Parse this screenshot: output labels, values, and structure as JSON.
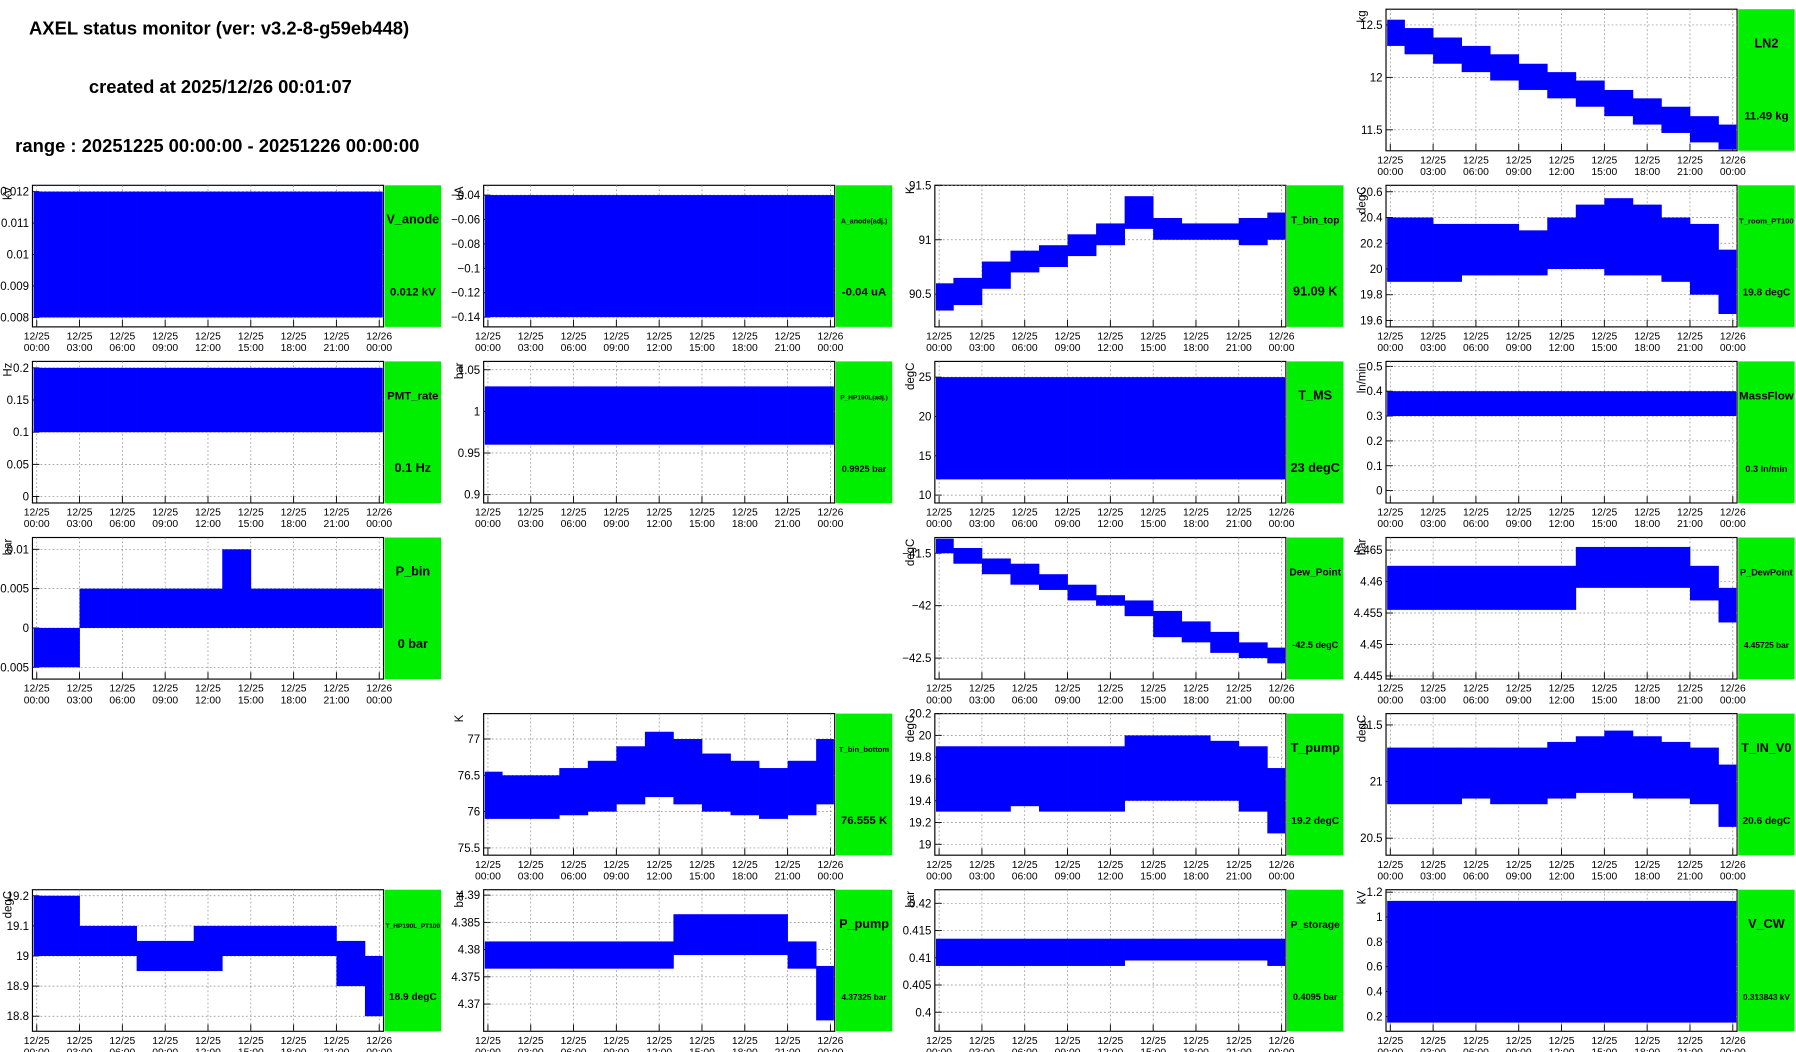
{
  "header": {
    "title": "AXEL status monitor (ver: v3.2-8-g59eb448)",
    "created": "created at 2025/12/26 00:01:07",
    "range": "range : 20251225 00:00:00 - 20251226 00:00:00"
  },
  "time_axis": {
    "xlim": [
      -0.3,
      24.3
    ],
    "x": [
      0,
      2,
      4,
      6,
      8,
      10,
      12,
      14,
      16,
      18,
      20,
      22,
      24
    ],
    "xticks": [
      {
        "value": 0,
        "date": "12/25",
        "time": "00:00"
      },
      {
        "value": 3,
        "date": "12/25",
        "time": "03:00"
      },
      {
        "value": 6,
        "date": "12/25",
        "time": "06:00"
      },
      {
        "value": 9,
        "date": "12/25",
        "time": "09:00"
      },
      {
        "value": 12,
        "date": "12/25",
        "time": "12:00"
      },
      {
        "value": 15,
        "date": "12/25",
        "time": "15:00"
      },
      {
        "value": 18,
        "date": "12/25",
        "time": "18:00"
      },
      {
        "value": 21,
        "date": "12/25",
        "time": "21:00"
      },
      {
        "value": 24,
        "date": "12/26",
        "time": "00:00"
      }
    ]
  },
  "panels": [
    [
      null,
      null,
      null,
      {
        "type": "band",
        "name": "LN2",
        "unit": "kg",
        "readout": "11.49 kg",
        "color": "#0000ff",
        "ylim": [
          11.3,
          12.65
        ],
        "yticks": [
          11.5,
          12,
          12.5
        ],
        "grid": true,
        "low": [
          12.3,
          12.22,
          12.13,
          12.05,
          11.97,
          11.88,
          11.8,
          11.72,
          11.63,
          11.55,
          11.47,
          11.38,
          11.3
        ],
        "high": [
          12.55,
          12.47,
          12.38,
          12.3,
          12.22,
          12.13,
          12.05,
          11.97,
          11.88,
          11.8,
          11.72,
          11.63,
          11.55
        ]
      }
    ],
    [
      {
        "type": "band",
        "name": "V_anode",
        "unit": "kV",
        "readout": "0.012 kV",
        "color": "#0000ff",
        "ylim": [
          0.0077,
          0.0122
        ],
        "yticks": [
          0.008,
          0.009,
          0.01,
          0.011,
          0.012
        ],
        "grid": true,
        "low": [
          0.008,
          0.008,
          0.008,
          0.008,
          0.008,
          0.008,
          0.008,
          0.008,
          0.008,
          0.008,
          0.008,
          0.008,
          0.008
        ],
        "high": [
          0.012,
          0.012,
          0.012,
          0.012,
          0.012,
          0.012,
          0.012,
          0.012,
          0.012,
          0.012,
          0.012,
          0.012,
          0.012
        ]
      },
      {
        "type": "band",
        "name": "A_anode(adj.)",
        "unit": "uA",
        "readout": "-0.04 uA",
        "color": "#0000ff",
        "ylim": [
          -0.148,
          -0.032
        ],
        "yticks": [
          {
            "value": -0.14,
            "label": "−0.14"
          },
          {
            "value": -0.12,
            "label": "−0.12"
          },
          {
            "value": -0.1,
            "label": "−0.1"
          },
          {
            "value": -0.08,
            "label": "−0.08"
          },
          {
            "value": -0.06,
            "label": "−0.06"
          },
          {
            "value": -0.04,
            "label": "−0.04"
          }
        ],
        "grid": true,
        "low": [
          -0.14,
          -0.14,
          -0.14,
          -0.14,
          -0.14,
          -0.14,
          -0.14,
          -0.14,
          -0.14,
          -0.14,
          -0.14,
          -0.14,
          -0.14
        ],
        "high": [
          -0.04,
          -0.04,
          -0.04,
          -0.04,
          -0.04,
          -0.04,
          -0.04,
          -0.04,
          -0.04,
          -0.04,
          -0.04,
          -0.04,
          -0.04
        ]
      },
      {
        "type": "band",
        "name": "T_bin_top",
        "unit": "K",
        "readout": "91.09 K",
        "color": "#0000ff",
        "ylim": [
          90.2,
          91.5
        ],
        "yticks": [
          90.5,
          91,
          91.5
        ],
        "grid": true,
        "low": [
          90.35,
          90.4,
          90.55,
          90.7,
          90.75,
          90.85,
          90.95,
          91.1,
          91.0,
          91.0,
          91.0,
          90.95,
          91.0
        ],
        "high": [
          90.6,
          90.65,
          90.8,
          90.9,
          90.95,
          91.05,
          91.15,
          91.4,
          91.2,
          91.15,
          91.15,
          91.2,
          91.25
        ]
      },
      {
        "type": "band",
        "name": "T_room_PT100",
        "unit": "degC",
        "readout": "19.8 degC",
        "color": "#0000ff",
        "ylim": [
          19.55,
          20.65
        ],
        "yticks": [
          19.6,
          19.8,
          20,
          20.2,
          20.4,
          20.6
        ],
        "grid": true,
        "low": [
          19.9,
          19.9,
          19.9,
          19.95,
          19.95,
          19.95,
          20.0,
          20.0,
          19.95,
          19.95,
          19.9,
          19.8,
          19.65
        ],
        "high": [
          20.4,
          20.4,
          20.35,
          20.35,
          20.35,
          20.3,
          20.4,
          20.5,
          20.55,
          20.5,
          20.4,
          20.35,
          20.15
        ]
      }
    ],
    [
      {
        "type": "band",
        "name": "PMT_rate",
        "unit": "Hz",
        "readout": "0.1 Hz",
        "color": "#0000ff",
        "ylim": [
          -0.01,
          0.21
        ],
        "yticks": [
          0,
          0.05,
          0.1,
          0.15,
          0.2
        ],
        "grid": true,
        "low": [
          0.1,
          0.1,
          0.1,
          0.1,
          0.1,
          0.1,
          0.1,
          0.1,
          0.1,
          0.1,
          0.1,
          0.1,
          0.1
        ],
        "high": [
          0.2,
          0.2,
          0.2,
          0.2,
          0.2,
          0.2,
          0.2,
          0.2,
          0.2,
          0.2,
          0.2,
          0.2,
          0.2
        ]
      },
      {
        "type": "band",
        "name": "P_HP190L(adj.)",
        "unit": "bar",
        "readout": "0.9925 bar",
        "color": "#0000ff",
        "ylim": [
          0.89,
          1.06
        ],
        "yticks": [
          0.9,
          0.95,
          1,
          1.05
        ],
        "grid": true,
        "low": [
          0.96,
          0.96,
          0.96,
          0.96,
          0.96,
          0.96,
          0.96,
          0.96,
          0.96,
          0.96,
          0.96,
          0.96,
          0.96
        ],
        "high": [
          1.03,
          1.03,
          1.03,
          1.03,
          1.03,
          1.03,
          1.03,
          1.03,
          1.03,
          1.03,
          1.03,
          1.03,
          1.03
        ]
      },
      {
        "type": "band",
        "name": "T_MS",
        "unit": "degC",
        "readout": "23 degC",
        "color": "#0000ff",
        "ylim": [
          9,
          27
        ],
        "yticks": [
          10,
          15,
          20,
          25
        ],
        "grid": true,
        "low": [
          12,
          12,
          12,
          12,
          12,
          12,
          12,
          12,
          12,
          12,
          12,
          12,
          12
        ],
        "high": [
          25,
          25,
          25,
          25,
          25,
          25,
          25,
          25,
          25,
          25,
          25,
          25,
          25
        ]
      },
      {
        "type": "band",
        "name": "MassFlow",
        "unit": "ln/min",
        "readout": "0.3 ln/min",
        "color": "#0000ff",
        "ylim": [
          -0.05,
          0.52
        ],
        "yticks": [
          0,
          0.1,
          0.2,
          0.3,
          0.4,
          0.5
        ],
        "grid": true,
        "low": [
          0.3,
          0.3,
          0.3,
          0.3,
          0.3,
          0.3,
          0.3,
          0.3,
          0.3,
          0.3,
          0.3,
          0.3,
          0.3
        ],
        "high": [
          0.4,
          0.4,
          0.4,
          0.4,
          0.4,
          0.4,
          0.4,
          0.4,
          0.4,
          0.4,
          0.4,
          0.4,
          0.4
        ]
      }
    ],
    [
      {
        "type": "band",
        "name": "P_bin",
        "unit": "bar",
        "readout": "0 bar",
        "color": "#0000ff",
        "ylim": [
          -0.0065,
          0.0115
        ],
        "yticks": [
          -0.005,
          0,
          0.005,
          0.01
        ],
        "grid": true,
        "low": [
          -0.005,
          -0.005,
          0,
          0,
          0,
          0,
          0,
          0,
          0,
          0,
          0,
          0,
          0
        ],
        "high": [
          0,
          0,
          0.005,
          0.005,
          0.005,
          0.005,
          0.005,
          0.01,
          0.005,
          0.005,
          0.005,
          0.005,
          0.005
        ]
      },
      null,
      {
        "type": "band",
        "name": "Dew_Point",
        "unit": "degC",
        "readout": "-42.5 degC",
        "color": "#0000ff",
        "ylim": [
          -42.7,
          -41.35
        ],
        "yticks": [
          {
            "value": -42.5,
            "label": "−42.5"
          },
          {
            "value": -42,
            "label": "−42"
          },
          {
            "value": -41.5,
            "label": "−41.5"
          }
        ],
        "grid": true,
        "low": [
          -41.5,
          -41.6,
          -41.7,
          -41.8,
          -41.85,
          -41.95,
          -42.0,
          -42.1,
          -42.3,
          -42.35,
          -42.45,
          -42.5,
          -42.55
        ],
        "high": [
          -41.35,
          -41.45,
          -41.55,
          -41.6,
          -41.7,
          -41.8,
          -41.9,
          -41.95,
          -42.05,
          -42.15,
          -42.25,
          -42.35,
          -42.4
        ]
      },
      {
        "type": "band",
        "name": "P_DewPoint",
        "unit": "bar",
        "readout": "4.45725 bar",
        "color": "#0000ff",
        "ylim": [
          4.4445,
          4.467
        ],
        "yticks": [
          4.445,
          4.45,
          4.455,
          4.46,
          4.465
        ],
        "grid": true,
        "low": [
          4.4555,
          4.4555,
          4.4555,
          4.4555,
          4.4555,
          4.4555,
          4.4555,
          4.459,
          4.459,
          4.459,
          4.459,
          4.457,
          4.4535
        ],
        "high": [
          4.4625,
          4.4625,
          4.4625,
          4.4625,
          4.4625,
          4.4625,
          4.4625,
          4.4655,
          4.4655,
          4.4655,
          4.4655,
          4.4625,
          4.459
        ]
      }
    ],
    [
      null,
      {
        "type": "band",
        "name": "T_bin_bottom",
        "unit": "K",
        "readout": "76.555 K",
        "color": "#0000ff",
        "ylim": [
          75.4,
          77.35
        ],
        "yticks": [
          75.5,
          76,
          76.5,
          77
        ],
        "grid": true,
        "low": [
          75.9,
          75.9,
          75.9,
          75.95,
          76.0,
          76.1,
          76.2,
          76.1,
          76.0,
          75.95,
          75.9,
          75.95,
          76.1
        ],
        "high": [
          76.55,
          76.5,
          76.5,
          76.6,
          76.7,
          76.9,
          77.1,
          77.0,
          76.8,
          76.7,
          76.6,
          76.7,
          77.0
        ]
      },
      {
        "type": "band",
        "name": "T_pump",
        "unit": "degC",
        "readout": "19.2 degC",
        "color": "#0000ff",
        "ylim": [
          18.9,
          20.2
        ],
        "yticks": [
          19,
          19.2,
          19.4,
          19.6,
          19.8,
          20,
          20.2
        ],
        "grid": true,
        "low": [
          19.3,
          19.3,
          19.3,
          19.35,
          19.3,
          19.3,
          19.3,
          19.4,
          19.4,
          19.4,
          19.4,
          19.3,
          19.1
        ],
        "high": [
          19.9,
          19.9,
          19.9,
          19.9,
          19.9,
          19.9,
          19.9,
          20.0,
          20.0,
          20.0,
          19.95,
          19.9,
          19.7
        ]
      },
      {
        "type": "band",
        "name": "T_IN_V0",
        "unit": "degC",
        "readout": "20.6 degC",
        "color": "#0000ff",
        "ylim": [
          20.35,
          21.6
        ],
        "yticks": [
          20.5,
          21,
          21.5
        ],
        "grid": true,
        "low": [
          20.8,
          20.8,
          20.8,
          20.85,
          20.8,
          20.8,
          20.85,
          20.9,
          20.9,
          20.85,
          20.85,
          20.8,
          20.6
        ],
        "high": [
          21.3,
          21.3,
          21.3,
          21.3,
          21.3,
          21.3,
          21.35,
          21.4,
          21.45,
          21.4,
          21.35,
          21.3,
          21.15
        ]
      }
    ],
    [
      {
        "type": "band",
        "name": "T_HP190L_PT100",
        "unit": "degC",
        "readout": "18.9 degC",
        "color": "#0000ff",
        "ylim": [
          18.75,
          19.22
        ],
        "yticks": [
          18.8,
          18.9,
          19,
          19.1,
          19.2
        ],
        "grid": true,
        "low": [
          19.0,
          19.0,
          19.0,
          19.0,
          18.95,
          18.95,
          18.95,
          19.0,
          19.0,
          19.0,
          19.0,
          18.9,
          18.8
        ],
        "high": [
          19.2,
          19.2,
          19.1,
          19.1,
          19.05,
          19.05,
          19.1,
          19.1,
          19.1,
          19.1,
          19.1,
          19.05,
          19.0
        ]
      },
      {
        "type": "band",
        "name": "P_pump",
        "unit": "bar",
        "readout": "4.37325 bar",
        "color": "#0000ff",
        "ylim": [
          4.365,
          4.391
        ],
        "yticks": [
          4.37,
          4.375,
          4.38,
          4.385,
          4.39
        ],
        "grid": true,
        "low": [
          4.3765,
          4.3765,
          4.3765,
          4.3765,
          4.3765,
          4.3765,
          4.3765,
          4.379,
          4.379,
          4.379,
          4.379,
          4.3765,
          4.367
        ],
        "high": [
          4.3815,
          4.3815,
          4.3815,
          4.3815,
          4.3815,
          4.3815,
          4.3815,
          4.3865,
          4.3865,
          4.3865,
          4.3865,
          4.3815,
          4.377
        ]
      },
      {
        "type": "band",
        "name": "P_storage",
        "unit": "bar",
        "readout": "0.4095 bar",
        "color": "#0000ff",
        "ylim": [
          0.3965,
          0.4225
        ],
        "yticks": [
          0.4,
          0.405,
          0.41,
          0.415,
          0.42
        ],
        "grid": true,
        "low": [
          0.4085,
          0.4085,
          0.4085,
          0.4085,
          0.4085,
          0.4085,
          0.4085,
          0.4095,
          0.4095,
          0.4095,
          0.4095,
          0.4095,
          0.4085
        ],
        "high": [
          0.4135,
          0.4135,
          0.4135,
          0.4135,
          0.4135,
          0.4135,
          0.4135,
          0.4135,
          0.4135,
          0.4135,
          0.4135,
          0.4135,
          0.4135
        ]
      },
      {
        "type": "band",
        "name": "V_CW",
        "unit": "kV",
        "readout": "0.313843 kV",
        "color": "#0000ff",
        "ylim": [
          0.08,
          1.22
        ],
        "yticks": [
          0.2,
          0.4,
          0.6,
          0.8,
          1,
          1.2
        ],
        "grid": true,
        "low": [
          0.15,
          0.15,
          0.15,
          0.15,
          0.15,
          0.15,
          0.15,
          0.15,
          0.15,
          0.15,
          0.15,
          0.15,
          0.15
        ],
        "high": [
          1.13,
          1.13,
          1.13,
          1.13,
          1.13,
          1.13,
          1.13,
          1.13,
          1.13,
          1.13,
          1.13,
          1.13,
          1.13
        ]
      }
    ]
  ]
}
